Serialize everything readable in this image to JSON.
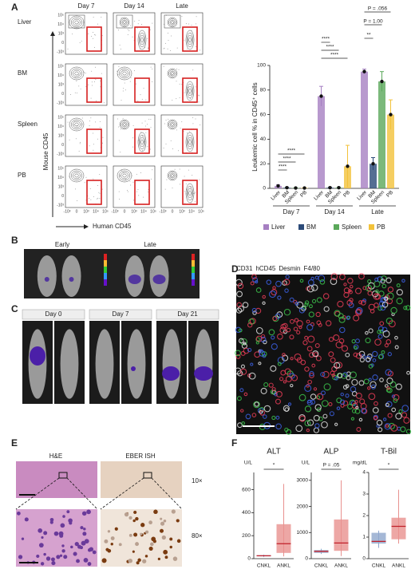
{
  "panels": {
    "a": "A",
    "b": "B",
    "c": "C",
    "d": "D",
    "e": "E",
    "f": "F"
  },
  "flow": {
    "columns": [
      "Day 7",
      "Day 14",
      "Late"
    ],
    "rows": [
      "Liver",
      "BM",
      "Spleen",
      "PB"
    ],
    "ylabel": "Mouse CD45",
    "xlabel": "Human CD45",
    "yticks": [
      "10⁵",
      "10⁴",
      "10³",
      "0",
      "-10³"
    ],
    "xticks": [
      "-10³",
      "0",
      "10³",
      "10⁴",
      "10⁵"
    ]
  },
  "imaging_b": {
    "labels": [
      "Early",
      "Late"
    ]
  },
  "imaging_c": {
    "labels": [
      "Day 0",
      "Day 7",
      "Day 21"
    ]
  },
  "if_d": {
    "legend": [
      "CD31",
      "hCD45",
      "Desmin",
      "F4/80"
    ]
  },
  "histo_e": {
    "labels": [
      "H&E",
      "EBER ISH"
    ],
    "magnifications": [
      "10×",
      "80×"
    ]
  },
  "chart_data": [
    {
      "type": "bar",
      "ylabel": "Leukemic cell % in CD45⁺ cells",
      "groups": [
        "Day 7",
        "Day 14",
        "Late"
      ],
      "series": [
        {
          "name": "Liver",
          "color": "#a67fc2",
          "values": [
            2,
            75,
            95
          ],
          "errors": [
            1,
            8,
            2
          ]
        },
        {
          "name": "BM",
          "color": "#2b4a78",
          "values": [
            0.5,
            0.5,
            20
          ],
          "errors": [
            0.3,
            0.3,
            5
          ]
        },
        {
          "name": "Spleen",
          "color": "#5aa85a",
          "values": [
            0.3,
            0.5,
            87
          ],
          "errors": [
            0.2,
            0.3,
            8
          ]
        },
        {
          "name": "PB",
          "color": "#f2c23a",
          "values": [
            0.3,
            18,
            60
          ],
          "errors": [
            0.2,
            17,
            12
          ]
        }
      ],
      "ylim": [
        0,
        100
      ],
      "yticks": [
        0,
        20,
        40,
        60,
        80,
        100
      ],
      "annotations": [
        "****",
        "****",
        "****",
        "****",
        "****",
        "****",
        "**",
        "P = 1.00",
        "P = .056"
      ]
    },
    {
      "type": "box",
      "title": "ALT",
      "ylabel": "U/L",
      "annotation": "*",
      "categories": [
        "CNKL",
        "ANKL"
      ],
      "boxes": [
        {
          "color": "#8fa6cc",
          "min": 15,
          "q1": 20,
          "median": 25,
          "q3": 30,
          "max": 35
        },
        {
          "color": "#e8918f",
          "min": 20,
          "q1": 50,
          "median": 130,
          "q3": 300,
          "max": 650
        }
      ],
      "ylim": [
        0,
        750
      ],
      "yticks": [
        0,
        200,
        400,
        600
      ]
    },
    {
      "type": "box",
      "title": "ALP",
      "ylabel": "U/L",
      "annotation": "P = .05",
      "categories": [
        "CNKL",
        "ANKL"
      ],
      "boxes": [
        {
          "color": "#8fa6cc",
          "min": 180,
          "q1": 220,
          "median": 280,
          "q3": 330,
          "max": 380
        },
        {
          "color": "#e8918f",
          "min": 100,
          "q1": 300,
          "median": 600,
          "q3": 1500,
          "max": 3000
        }
      ],
      "ylim": [
        0,
        3300
      ],
      "yticks": [
        0,
        1000,
        2000,
        3000
      ]
    },
    {
      "type": "box",
      "title": "T-Bil",
      "ylabel": "mg/dL",
      "annotation": "*",
      "categories": [
        "CNKL",
        "ANKL"
      ],
      "boxes": [
        {
          "color": "#8fa6cc",
          "min": 0.5,
          "q1": 0.7,
          "median": 0.8,
          "q3": 1.2,
          "max": 1.3
        },
        {
          "color": "#e8918f",
          "min": 0.7,
          "q1": 0.9,
          "median": 1.5,
          "q3": 1.9,
          "max": 3.2
        }
      ],
      "ylim": [
        0,
        4
      ],
      "yticks": [
        0,
        1,
        2,
        3,
        4
      ]
    }
  ]
}
